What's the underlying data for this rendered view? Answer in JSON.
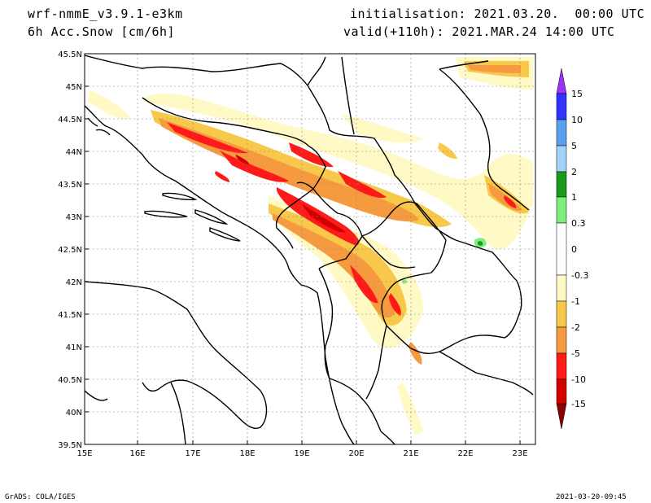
{
  "header": {
    "model": "wrf-nmmE_v3.9.1-e3km",
    "field": "6h Acc.Snow [cm/6h]",
    "init": "initialisation: 2021.03.20.  00:00 UTC",
    "valid": "valid(+110h): 2021.MAR.24 14:00 UTC"
  },
  "map": {
    "lat_labels": [
      "45.5N",
      "45N",
      "44.5N",
      "44N",
      "43.5N",
      "43N",
      "42.5N",
      "42N",
      "41.5N",
      "41N",
      "40.5N",
      "40N",
      "39.5N"
    ],
    "lon_labels": [
      "15E",
      "16E",
      "17E",
      "18E",
      "19E",
      "20E",
      "21E",
      "22E",
      "23E"
    ],
    "grid": true
  },
  "colorbar": {
    "labels": [
      "15",
      "10",
      "5",
      "2",
      "1",
      "0.3",
      "0",
      "-0.3",
      "-1",
      "-2",
      "-5",
      "-10",
      "-15"
    ],
    "colors": [
      "#9b30ff",
      "#3333ff",
      "#5aa0ee",
      "#a5d2f8",
      "#1b9a1b",
      "#7cee7c",
      "#ffffff",
      "#fff9c6",
      "#f7c84a",
      "#f59a3e",
      "#ff1a1a",
      "#d40000",
      "#8c0000"
    ]
  },
  "footer": {
    "left": "GrADS: COLA/IGES",
    "right": "2021-03-20-09:45"
  }
}
